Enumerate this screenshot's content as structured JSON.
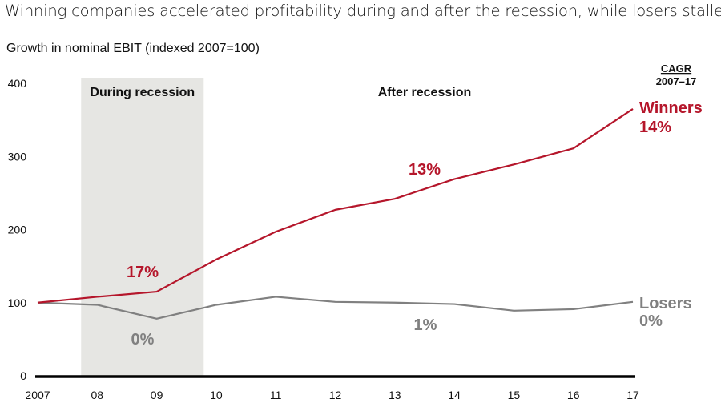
{
  "chart_data": {
    "type": "line",
    "title": "Winning companies accelerated profitability during and after the recession, while losers stalled",
    "subtitle": "Growth in nominal EBIT (indexed 2007=100)",
    "xlabel": "",
    "ylabel": "",
    "categories": [
      "2007",
      "08",
      "09",
      "10",
      "11",
      "12",
      "13",
      "14",
      "15",
      "16",
      "17"
    ],
    "ylim": [
      0,
      400
    ],
    "yticks": [
      "0",
      "100",
      "200",
      "300",
      "400"
    ],
    "grid": false,
    "legend": "direct labels at line ends",
    "series": [
      {
        "name": "Winners",
        "cagr": "14%",
        "color": "#b5162b",
        "values": [
          100,
          108,
          115,
          159,
          197,
          227,
          242,
          269,
          289,
          311,
          365
        ]
      },
      {
        "name": "Losers",
        "cagr": "0%",
        "color": "#808080",
        "values": [
          100,
          97,
          78,
          97,
          108,
          101,
          100,
          98,
          89,
          91,
          101
        ]
      }
    ],
    "regions": [
      {
        "label": "During recession",
        "shaded": true,
        "shade_color": "#e6e6e3"
      },
      {
        "label": "After recession",
        "shaded": false
      }
    ],
    "annotations": {
      "winners_during": "17%",
      "losers_during": "0%",
      "winners_after": "13%",
      "losers_after": "1%"
    },
    "cagr_header": "CAGR",
    "cagr_period": "2007–17"
  }
}
